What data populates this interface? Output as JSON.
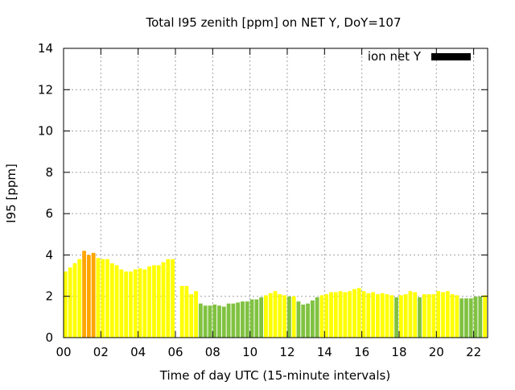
{
  "chart_data": {
    "type": "bar",
    "title": "Total I95 zenith [ppm] on NET Y, DoY=107",
    "xlabel": "Time of day UTC (15-minute intervals)",
    "ylabel": "I95 [ppm]",
    "xlim": [
      0,
      22.75
    ],
    "ylim": [
      0,
      14
    ],
    "grid": true,
    "legend": {
      "label": "ion net Y",
      "placement": "top-right",
      "color": "#000000"
    },
    "xticks": [
      {
        "v": 0,
        "label": "00"
      },
      {
        "v": 2,
        "label": "02"
      },
      {
        "v": 4,
        "label": "04"
      },
      {
        "v": 6,
        "label": "06"
      },
      {
        "v": 8,
        "label": "08"
      },
      {
        "v": 10,
        "label": "10"
      },
      {
        "v": 12,
        "label": "12"
      },
      {
        "v": 14,
        "label": "14"
      },
      {
        "v": 16,
        "label": "16"
      },
      {
        "v": 18,
        "label": "18"
      },
      {
        "v": 20,
        "label": "20"
      },
      {
        "v": 22,
        "label": "22"
      }
    ],
    "yticks": [
      {
        "v": 0,
        "label": "0"
      },
      {
        "v": 2,
        "label": "2"
      },
      {
        "v": 4,
        "label": "4"
      },
      {
        "v": 6,
        "label": "6"
      },
      {
        "v": 8,
        "label": "8"
      },
      {
        "v": 10,
        "label": "10"
      },
      {
        "v": 12,
        "label": "12"
      },
      {
        "v": 14,
        "label": "14"
      }
    ],
    "interval_hours": 0.25,
    "colors": {
      "low": "#80c241",
      "mid": "#ffff00",
      "high": "#ffa500"
    },
    "thresholds": {
      "low_below": 2.0,
      "high_at_or_above": 4.0
    },
    "values": [
      3.2,
      3.4,
      3.6,
      3.8,
      4.2,
      4.0,
      4.1,
      3.85,
      3.8,
      3.8,
      3.6,
      3.5,
      3.3,
      3.2,
      3.2,
      3.3,
      3.35,
      3.3,
      3.45,
      3.5,
      3.5,
      3.65,
      3.8,
      3.8,
      null,
      2.5,
      2.5,
      2.1,
      2.25,
      1.65,
      1.55,
      1.55,
      1.6,
      1.55,
      1.5,
      1.65,
      1.65,
      1.7,
      1.75,
      1.75,
      1.85,
      1.85,
      1.95,
      2.05,
      2.15,
      2.25,
      2.1,
      2.05,
      1.99,
      2.0,
      1.75,
      1.6,
      1.65,
      1.8,
      1.95,
      2.05,
      2.1,
      2.2,
      2.2,
      2.25,
      2.2,
      2.25,
      2.35,
      2.4,
      2.25,
      2.15,
      2.2,
      2.1,
      2.15,
      2.1,
      2.05,
      1.95,
      2.05,
      2.1,
      2.25,
      2.2,
      1.95,
      2.1,
      2.1,
      2.1,
      2.25,
      2.2,
      2.25,
      2.1,
      2.05,
      1.9,
      1.9,
      1.9,
      1.99,
      1.99,
      2.05,
      2.15
    ]
  }
}
